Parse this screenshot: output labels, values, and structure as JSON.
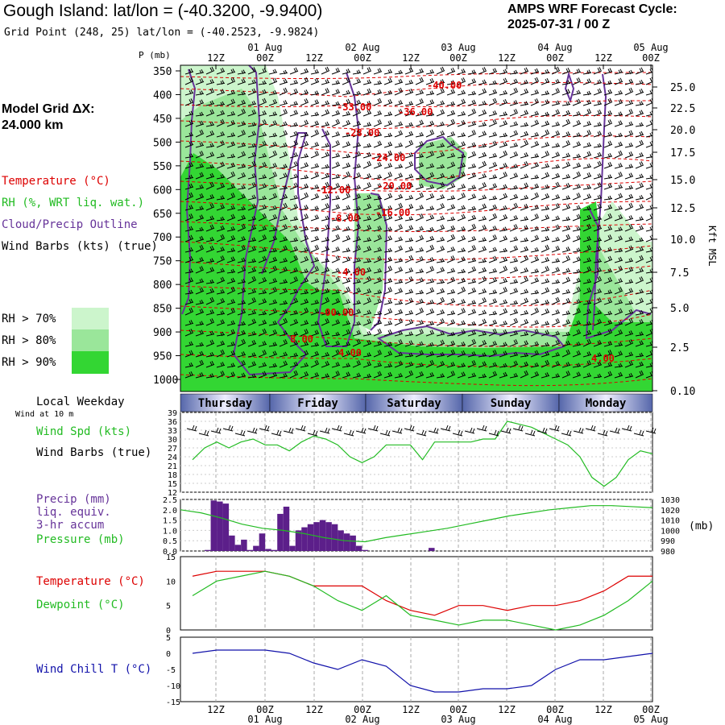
{
  "header": {
    "title": "Gough Island:  lat/lon = (-40.3200, -9.9400)",
    "subtitle": "Grid Point (248, 25) lat/lon = (-40.2523, -9.9824)",
    "cycle_line1": "AMPS WRF Forecast Cycle:",
    "cycle_line2": "2025-07-31 / 00  Z"
  },
  "sidebar": {
    "grid_dx_label": "Model Grid ΔX:",
    "grid_dx_value": " 24.000 km",
    "legend_temperature": "Temperature (°C)",
    "legend_rh": "RH (%, WRT liq. wat.)",
    "legend_cloud": "Cloud/Precip Outline",
    "legend_wind": "Wind Barbs (kts) (true)",
    "rh70": "RH > 70%",
    "rh80": "RH > 80%",
    "rh90": "RH > 90%",
    "local_weekday": "Local Weekday",
    "wind_at_10m": "Wind at 10 m",
    "wind_spd": "Wind Spd (kts)",
    "wind_barbs": "Wind Barbs (true)",
    "precip1": "Precip (mm)",
    "precip2": "liq. equiv.",
    "precip3": "3-hr accum",
    "pressure": "Pressure (mb)",
    "temperature": "Temperature (°C)",
    "dewpoint": "Dewpoint (°C)",
    "windchill": "Wind Chill T (°C)"
  },
  "colors": {
    "rh70": "#ccf5cc",
    "rh80": "#9ae69a",
    "rh90": "#33d633",
    "temperature": "#dd0000",
    "green": "#22bb22",
    "purple": "#663399",
    "precip_bar": "#5c1f8a",
    "windchill": "#1111aa",
    "day_band_dark": "#5566aa",
    "day_band_light": "#eeeeff"
  },
  "time_axis": {
    "top_labels": [
      "12Z",
      "00Z",
      "12Z",
      "00Z",
      "12Z",
      "00Z",
      "12Z",
      "00Z",
      "12Z",
      "00Z"
    ],
    "top_dates": [
      "01 Aug",
      "02 Aug",
      "03 Aug",
      "04 Aug",
      "05 Aug"
    ],
    "bottom_labels": [
      "12Z",
      "00Z",
      "12Z",
      "00Z",
      "12Z",
      "00Z",
      "12Z",
      "00Z",
      "12Z",
      "00Z"
    ],
    "bottom_dates": [
      "01 Aug",
      "02 Aug",
      "03 Aug",
      "04 Aug",
      "05 Aug"
    ],
    "weekdays": [
      "Thursday",
      "Friday",
      "Saturday",
      "Sunday",
      "Monday"
    ]
  },
  "chart_data": [
    {
      "type": "heatmap",
      "name": "cross-section",
      "pressure_label": "P (mb)",
      "height_label": "Kft MSL",
      "pressure_ticks": [
        350,
        400,
        450,
        500,
        550,
        600,
        650,
        700,
        750,
        800,
        850,
        900,
        950,
        1000
      ],
      "height_ticks": [
        "25.0",
        "22.5",
        "20.0",
        "17.5",
        "15.0",
        "12.5",
        "10.0",
        "7.5",
        "5.0",
        "2.5",
        "0.10"
      ],
      "temperature_contour_labels": [
        "-40.00",
        "-33.00",
        "-36.00",
        "-28.00",
        "-24.00",
        "-20.00",
        "-12.00",
        "-8.00",
        "-16.00",
        "-4.00",
        "-00.00",
        "8.00",
        "4.00",
        "4.00"
      ]
    },
    {
      "type": "line",
      "name": "wind-speed",
      "ylim": [
        12,
        39
      ],
      "yticks": [
        12,
        15,
        18,
        21,
        24,
        27,
        30,
        33,
        36,
        39
      ],
      "x_hours": [
        12,
        18,
        24,
        30,
        36,
        42,
        48,
        54,
        60,
        66,
        72,
        78,
        84,
        90,
        96,
        102,
        108,
        114,
        120,
        126,
        132,
        138,
        144,
        150,
        156,
        162,
        168,
        174,
        180,
        186,
        192,
        198,
        204,
        210,
        216,
        222,
        228,
        234,
        240
      ],
      "values": [
        23,
        27,
        29,
        27,
        29,
        30,
        28,
        28,
        26,
        29,
        31,
        30,
        28,
        24,
        22,
        24,
        28,
        28,
        28,
        23,
        29,
        29,
        29,
        29,
        30,
        30,
        36,
        35,
        34,
        32,
        30,
        28,
        24,
        17,
        14,
        17,
        23,
        26,
        25
      ]
    },
    {
      "type": "bar",
      "name": "precipitation",
      "ylim": [
        0,
        2.5
      ],
      "yticks": [
        "0.0",
        "0.5",
        "1.0",
        "1.5",
        "2.0",
        "2.5"
      ],
      "bar_hours": [
        21,
        24,
        27,
        30,
        33,
        36,
        39,
        42,
        45,
        48,
        51,
        54,
        57,
        60,
        63,
        66,
        69,
        72,
        75,
        78,
        81,
        84,
        87,
        90,
        93,
        96,
        99,
        102,
        105,
        108,
        111,
        114,
        117,
        120,
        123,
        126,
        129,
        132
      ],
      "values": [
        0.05,
        2.45,
        2.4,
        2.3,
        0.75,
        0.3,
        0.55,
        0.05,
        0.25,
        0.85,
        0.1,
        0.05,
        1.8,
        2.15,
        0.25,
        1.0,
        1.15,
        1.3,
        1.4,
        1.5,
        1.4,
        1.3,
        1.0,
        0.85,
        0.75,
        0.25,
        0.05,
        0.0,
        0.0,
        0.0,
        0.0,
        0.0,
        0.0,
        0.0,
        0.0,
        0.0,
        0.0,
        0.15
      ],
      "pressure_ylim": [
        980,
        1030
      ],
      "pressure_ticks": [
        "1030",
        "1020",
        "1010",
        "1000",
        "990",
        "980"
      ],
      "pressure_unit": "(mb)",
      "pressure_values": [
        1020,
        1017,
        1012,
        1006,
        1002,
        1000,
        997,
        993,
        990,
        989,
        993,
        996,
        999,
        1002,
        1006,
        1010,
        1014,
        1017,
        1020,
        1022,
        1024,
        1024,
        1023,
        1022
      ]
    },
    {
      "type": "line",
      "name": "temperature-dewpoint",
      "ylim": [
        0,
        15
      ],
      "yticks": [
        0,
        5,
        10,
        15
      ],
      "x_hours": [
        12,
        24,
        36,
        48,
        60,
        72,
        84,
        96,
        108,
        120,
        132,
        144,
        156,
        168,
        180,
        192,
        204,
        216,
        228,
        240
      ],
      "temperature": [
        11,
        12,
        12,
        12,
        11,
        9,
        9,
        9,
        6,
        4,
        3,
        5,
        5,
        4,
        5,
        5,
        6,
        8,
        11,
        11
      ],
      "dewpoint": [
        7,
        10,
        11,
        12,
        11,
        9,
        6,
        4,
        7,
        3,
        2,
        1,
        2,
        2,
        1,
        0,
        1,
        3,
        6,
        10
      ]
    },
    {
      "type": "line",
      "name": "wind-chill",
      "ylim": [
        -15,
        5
      ],
      "yticks": [
        -15,
        -10,
        -5,
        0,
        5
      ],
      "x_hours": [
        12,
        24,
        36,
        48,
        60,
        72,
        84,
        96,
        108,
        120,
        132,
        144,
        156,
        168,
        180,
        192,
        204,
        216,
        228,
        240
      ],
      "values": [
        0,
        1,
        1,
        1,
        0,
        -3,
        -5,
        -2,
        -4,
        -10,
        -12,
        -12,
        -11,
        -11,
        -10,
        -5,
        -2,
        -2,
        -1,
        0
      ]
    }
  ]
}
